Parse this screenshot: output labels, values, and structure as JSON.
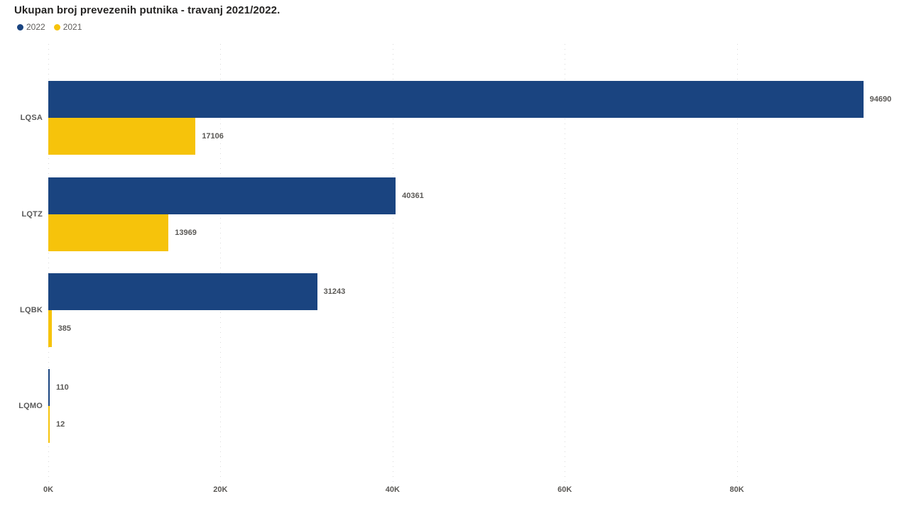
{
  "chart_data": {
    "type": "bar",
    "orientation": "horizontal",
    "title": "Ukupan broj prevezenih putnika - travanj 2021/2022.",
    "categories": [
      "LQSA",
      "LQTZ",
      "LQBK",
      "LQMO"
    ],
    "series": [
      {
        "name": "2022",
        "color": "#1A4480",
        "values": [
          94690,
          40361,
          31243,
          110
        ]
      },
      {
        "name": "2021",
        "color": "#F6C30B",
        "values": [
          17106,
          13969,
          385,
          12
        ]
      }
    ],
    "data_labels": [
      [
        "94690",
        "40361",
        "31243",
        "110"
      ],
      [
        "17106",
        "13969",
        "385",
        "12"
      ]
    ],
    "x_axis": {
      "ticks": [
        "0K",
        "20K",
        "40K",
        "60K",
        "80K"
      ],
      "tick_values": [
        0,
        20000,
        40000,
        60000,
        80000
      ],
      "max": 100000
    },
    "legend_position": "top-left",
    "grid": "dotted-vertical",
    "colors": {
      "background": "#FFFFFF",
      "title_text": "#252423",
      "label_text": "#5A5855",
      "legend_text": "#605E5C",
      "gridline": "#D9D9D9"
    }
  }
}
